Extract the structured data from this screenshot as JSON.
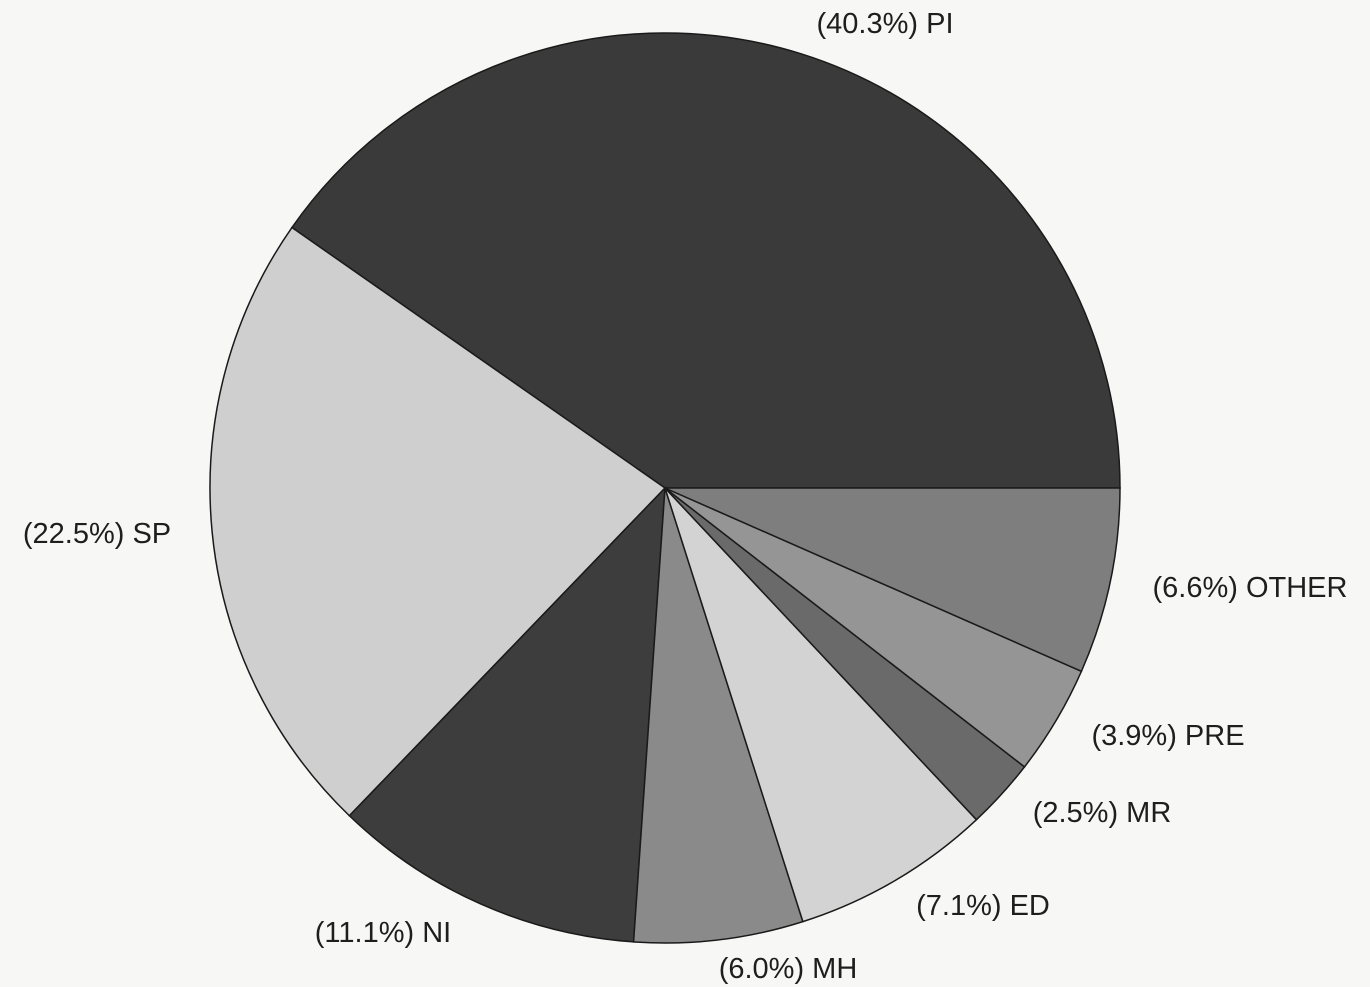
{
  "chart_data": {
    "type": "pie",
    "start_angle_deg": 0,
    "direction": "counterclockwise",
    "slices": [
      {
        "category": "PI",
        "value": 40.3,
        "label": "(40.3%) PI",
        "color": "#3a3a3a"
      },
      {
        "category": "SP",
        "value": 22.5,
        "label": "(22.5%) SP",
        "color": "#cfcfcf"
      },
      {
        "category": "NI",
        "value": 11.1,
        "label": "(11.1%) NI",
        "color": "#3d3d3d"
      },
      {
        "category": "MH",
        "value": 6.0,
        "label": "(6.0%) MH",
        "color": "#8a8a8a"
      },
      {
        "category": "ED",
        "value": 7.1,
        "label": "(7.1%) ED",
        "color": "#d3d3d3"
      },
      {
        "category": "MR",
        "value": 2.5,
        "label": "(2.5%) MR",
        "color": "#6a6a6a"
      },
      {
        "category": "PRE",
        "value": 3.9,
        "label": "(3.9%) PRE",
        "color": "#959595"
      },
      {
        "category": "OTHER",
        "value": 6.6,
        "label": "(6.6%) OTHER",
        "color": "#7e7e7e"
      }
    ]
  }
}
